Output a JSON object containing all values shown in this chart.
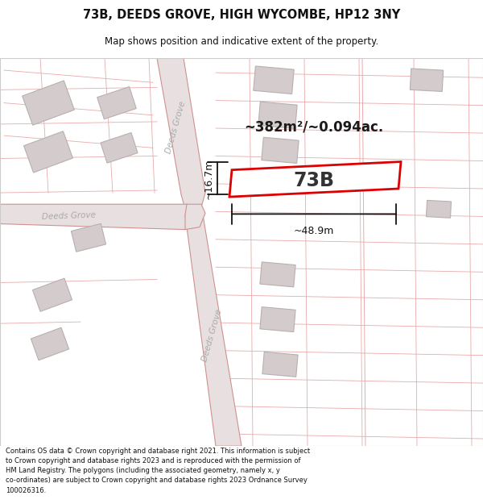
{
  "title": "73B, DEEDS GROVE, HIGH WYCOMBE, HP12 3NY",
  "subtitle": "Map shows position and indicative extent of the property.",
  "footer": "Contains OS data © Crown copyright and database right 2021. This information is subject\nto Crown copyright and database rights 2023 and is reproduced with the permission of\nHM Land Registry. The polygons (including the associated geometry, namely x, y\nco-ordinates) are subject to Crown copyright and database rights 2023 Ordnance Survey\n100026316.",
  "map_bg": "#faf6f6",
  "road_fill": "#e8e0e0",
  "road_edge": "#d09090",
  "building_fill": "#d4cccc",
  "building_edge": "#b8b0b0",
  "property_edge": "#dd0000",
  "thin_line": "#e8aaaa",
  "dim_color": "#111111",
  "area_text": "~382m²/~0.094ac.",
  "label_73b": "73B",
  "dim_width": "~48.9m",
  "dim_height": "~16.7m",
  "road_label": "Deeds Grove",
  "road_text_color": "#aaaaaa"
}
